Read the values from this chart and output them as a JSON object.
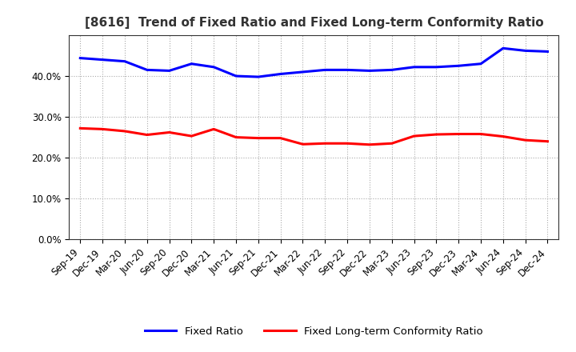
{
  "title": "[8616]  Trend of Fixed Ratio and Fixed Long-term Conformity Ratio",
  "x_labels": [
    "Sep-19",
    "Dec-19",
    "Mar-20",
    "Jun-20",
    "Sep-20",
    "Dec-20",
    "Mar-21",
    "Jun-21",
    "Sep-21",
    "Dec-21",
    "Mar-22",
    "Jun-22",
    "Sep-22",
    "Dec-22",
    "Mar-23",
    "Jun-23",
    "Sep-23",
    "Dec-23",
    "Mar-24",
    "Jun-24",
    "Sep-24",
    "Dec-24"
  ],
  "fixed_ratio": [
    0.444,
    0.44,
    0.436,
    0.415,
    0.413,
    0.43,
    0.422,
    0.4,
    0.398,
    0.405,
    0.41,
    0.415,
    0.415,
    0.413,
    0.415,
    0.422,
    0.422,
    0.425,
    0.43,
    0.468,
    0.462,
    0.46
  ],
  "fixed_lt_ratio": [
    0.272,
    0.27,
    0.265,
    0.256,
    0.262,
    0.253,
    0.27,
    0.25,
    0.248,
    0.248,
    0.233,
    0.235,
    0.235,
    0.232,
    0.235,
    0.253,
    0.257,
    0.258,
    0.258,
    0.252,
    0.243,
    0.24
  ],
  "fixed_ratio_color": "#0000FF",
  "fixed_lt_ratio_color": "#FF0000",
  "ylim": [
    0.0,
    0.5
  ],
  "yticks": [
    0.0,
    0.1,
    0.2,
    0.3,
    0.4
  ],
  "background_color": "#FFFFFF",
  "plot_bg_color": "#FFFFFF",
  "grid_color": "#AAAAAA",
  "title_color": "#333333",
  "legend_fixed": "Fixed Ratio",
  "legend_fixed_lt": "Fixed Long-term Conformity Ratio",
  "tick_fontsize": 8.5,
  "title_fontsize": 11
}
